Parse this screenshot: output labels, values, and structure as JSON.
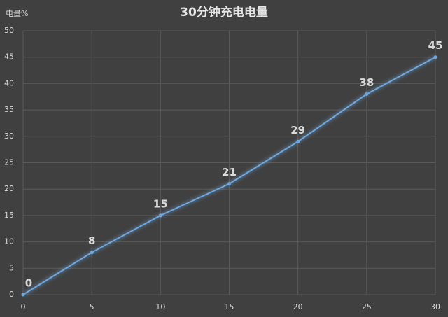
{
  "chart_data": {
    "type": "line",
    "title": "30分钟充电电量",
    "y_label": "电量%",
    "x": [
      0,
      5,
      10,
      15,
      20,
      25,
      30
    ],
    "values": [
      0,
      8,
      15,
      21,
      29,
      38,
      45
    ],
    "color": "#6fa8e0",
    "xlim": [
      0,
      30
    ],
    "xticks": [
      0,
      5,
      10,
      15,
      20,
      25,
      30
    ],
    "ylim": [
      0,
      50
    ],
    "yticks": [
      0,
      5,
      10,
      15,
      20,
      25,
      30,
      35,
      40,
      45,
      50
    ],
    "grid": true
  }
}
